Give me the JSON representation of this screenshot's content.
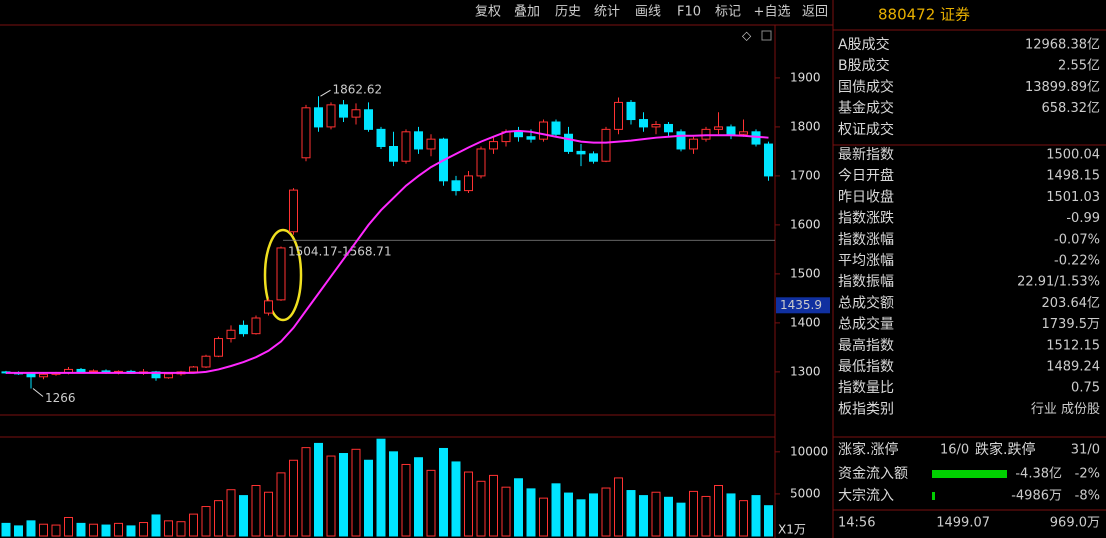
{
  "toolbar": [
    "复权",
    "叠加",
    "历史",
    "统计",
    "画线",
    "F10",
    "标记",
    "+自选",
    "返回"
  ],
  "chart_data": {
    "type": "candlestick",
    "open": [
      1300,
      1298,
      1296,
      1290,
      1295,
      1298,
      1305,
      1300,
      1302,
      1299,
      1301,
      1297,
      1300,
      1288,
      1296,
      1300,
      1310,
      1332,
      1368,
      1395,
      1378,
      1420,
      1447,
      1586,
      1737,
      1839,
      1800,
      1845,
      1820,
      1835,
      1795,
      1760,
      1730,
      1790,
      1755,
      1775,
      1690,
      1670,
      1700,
      1755,
      1770,
      1790,
      1780,
      1775,
      1810,
      1785,
      1750,
      1745,
      1730,
      1795,
      1850,
      1815,
      1800,
      1805,
      1790,
      1755,
      1775,
      1795,
      1800,
      1785,
      1790,
      1765
    ],
    "high": [
      1302,
      1301,
      1299,
      1298,
      1300,
      1310,
      1308,
      1305,
      1305,
      1303,
      1304,
      1306,
      1302,
      1298,
      1302,
      1312,
      1335,
      1372,
      1395,
      1405,
      1415,
      1450,
      1556,
      1675,
      1845,
      1862.62,
      1850,
      1855,
      1848,
      1850,
      1800,
      1790,
      1795,
      1800,
      1785,
      1778,
      1700,
      1710,
      1760,
      1780,
      1795,
      1800,
      1795,
      1815,
      1815,
      1800,
      1765,
      1750,
      1800,
      1860,
      1855,
      1830,
      1812,
      1810,
      1795,
      1780,
      1800,
      1830,
      1805,
      1815,
      1795,
      1770
    ],
    "low": [
      1296,
      1294,
      1266,
      1285,
      1292,
      1295,
      1298,
      1297,
      1296,
      1295,
      1296,
      1294,
      1282,
      1286,
      1292,
      1298,
      1308,
      1330,
      1360,
      1372,
      1376,
      1415,
      1445,
      1580,
      1730,
      1790,
      1795,
      1810,
      1805,
      1790,
      1755,
      1720,
      1725,
      1745,
      1740,
      1680,
      1660,
      1665,
      1695,
      1745,
      1760,
      1770,
      1768,
      1770,
      1780,
      1745,
      1720,
      1725,
      1728,
      1785,
      1805,
      1790,
      1785,
      1780,
      1750,
      1745,
      1770,
      1785,
      1775,
      1780,
      1760,
      1690
    ],
    "close": [
      1298,
      1296,
      1290,
      1295,
      1298,
      1305,
      1300,
      1302,
      1299,
      1301,
      1297,
      1300,
      1288,
      1296,
      1300,
      1310,
      1332,
      1368,
      1385,
      1378,
      1410,
      1445,
      1553,
      1671,
      1839,
      1800,
      1845,
      1820,
      1835,
      1795,
      1760,
      1730,
      1790,
      1755,
      1775,
      1690,
      1670,
      1700,
      1755,
      1770,
      1790,
      1780,
      1775,
      1810,
      1785,
      1750,
      1745,
      1730,
      1795,
      1850,
      1815,
      1800,
      1805,
      1790,
      1755,
      1775,
      1795,
      1800,
      1785,
      1790,
      1765,
      1700
    ],
    "ma": [
      1298,
      1298,
      1298,
      1298,
      1298,
      1298,
      1298,
      1298,
      1298,
      1298,
      1298,
      1298,
      1298,
      1298,
      1298,
      1298,
      1300,
      1305,
      1312,
      1320,
      1330,
      1343,
      1362,
      1390,
      1425,
      1460,
      1495,
      1530,
      1565,
      1600,
      1630,
      1655,
      1680,
      1700,
      1718,
      1732,
      1745,
      1758,
      1770,
      1780,
      1790,
      1792,
      1790,
      1785,
      1780,
      1775,
      1770,
      1768,
      1768,
      1770,
      1772,
      1775,
      1778,
      1780,
      1782,
      1782,
      1783,
      1783,
      1783,
      1782,
      1780,
      1778
    ],
    "volume": [
      1500,
      1200,
      1800,
      1400,
      1300,
      2200,
      1500,
      1400,
      1300,
      1500,
      1200,
      1600,
      2500,
      1800,
      1700,
      2600,
      3500,
      4200,
      5500,
      4800,
      6000,
      5200,
      7500,
      9000,
      10500,
      11000,
      9500,
      9800,
      10300,
      9000,
      11500,
      10000,
      8500,
      9300,
      7800,
      10400,
      8800,
      7600,
      6500,
      7200,
      5800,
      6800,
      5600,
      4500,
      6200,
      5100,
      4300,
      5000,
      5700,
      6900,
      5400,
      4800,
      5200,
      4600,
      3900,
      5300,
      4700,
      6000,
      5000,
      4200,
      4800,
      3600
    ],
    "up_color": "#ff3232",
    "down_color": "#00e5ff",
    "ma_color": "#ff28ff",
    "ylim": [
      1212,
      2008
    ],
    "yticks": [
      1900,
      1800,
      1700,
      1600,
      1500,
      1400,
      1300
    ],
    "volume_ylim": [
      0,
      12000
    ],
    "volume_yticks": [
      10000,
      5000
    ],
    "volume_unit": "X1万",
    "high_mark": 1862.62,
    "low_mark": 1266,
    "price_marker": 1435.9,
    "range_line": {
      "value": 1568.71,
      "label": "1504.17-1568.71"
    }
  },
  "panel": {
    "title": "880472 证券",
    "rows": [
      {
        "label": "A股成交",
        "value": "12968.38亿",
        "color": "#e8d000"
      },
      {
        "label": "B股成交",
        "value": "2.55亿",
        "color": "#e8d000"
      },
      {
        "label": "国债成交",
        "value": "13899.89亿",
        "color": "#e8d000"
      },
      {
        "label": "基金成交",
        "value": "658.32亿",
        "color": "#e8d000"
      },
      {
        "label": "权证成交"
      },
      {
        "label": "最新指数",
        "value": "1500.04",
        "color": "#00e000"
      },
      {
        "label": "今日开盘",
        "value": "1498.15",
        "color": "#00e000"
      },
      {
        "label": "昨日收盘",
        "value": "1501.03",
        "color": "#ffffff"
      },
      {
        "label": "指数涨跌",
        "value": "-0.99",
        "color": "#00e000"
      },
      {
        "label": "指数涨幅",
        "value": "-0.07%",
        "color": "#00e000"
      },
      {
        "label": "平均涨幅",
        "value": "-0.22%",
        "color": "#00e000"
      },
      {
        "label": "指数振幅",
        "value": "22.91/1.53%",
        "color": "#ffffff"
      },
      {
        "label": "总成交额",
        "value": "203.64亿",
        "color": "#e8d000"
      },
      {
        "label": "总成交量",
        "value": "1739.5万",
        "color": "#e8d000"
      },
      {
        "label": "最高指数",
        "value": "1512.15",
        "color": "#ff3232"
      },
      {
        "label": "最低指数",
        "value": "1489.24",
        "color": "#00e000"
      },
      {
        "label": "指数量比",
        "value": "0.75",
        "color": "#e8d000"
      },
      {
        "label": "板指类别",
        "value": "行业 成份股",
        "color": "#e8d000"
      }
    ],
    "updown": {
      "up_label": "涨家.涨停",
      "up_value": "16/0",
      "down_label": "跌家.跌停",
      "down_value": "31/0"
    },
    "flows": [
      {
        "label": "资金流入额",
        "value": "-4.38亿",
        "pct": "-2%"
      },
      {
        "label": "大宗流入",
        "value": "-4986万",
        "pct": "-8%"
      }
    ],
    "tick": {
      "time": "14:56",
      "price": "1499.07",
      "volume": "969.0万"
    }
  }
}
